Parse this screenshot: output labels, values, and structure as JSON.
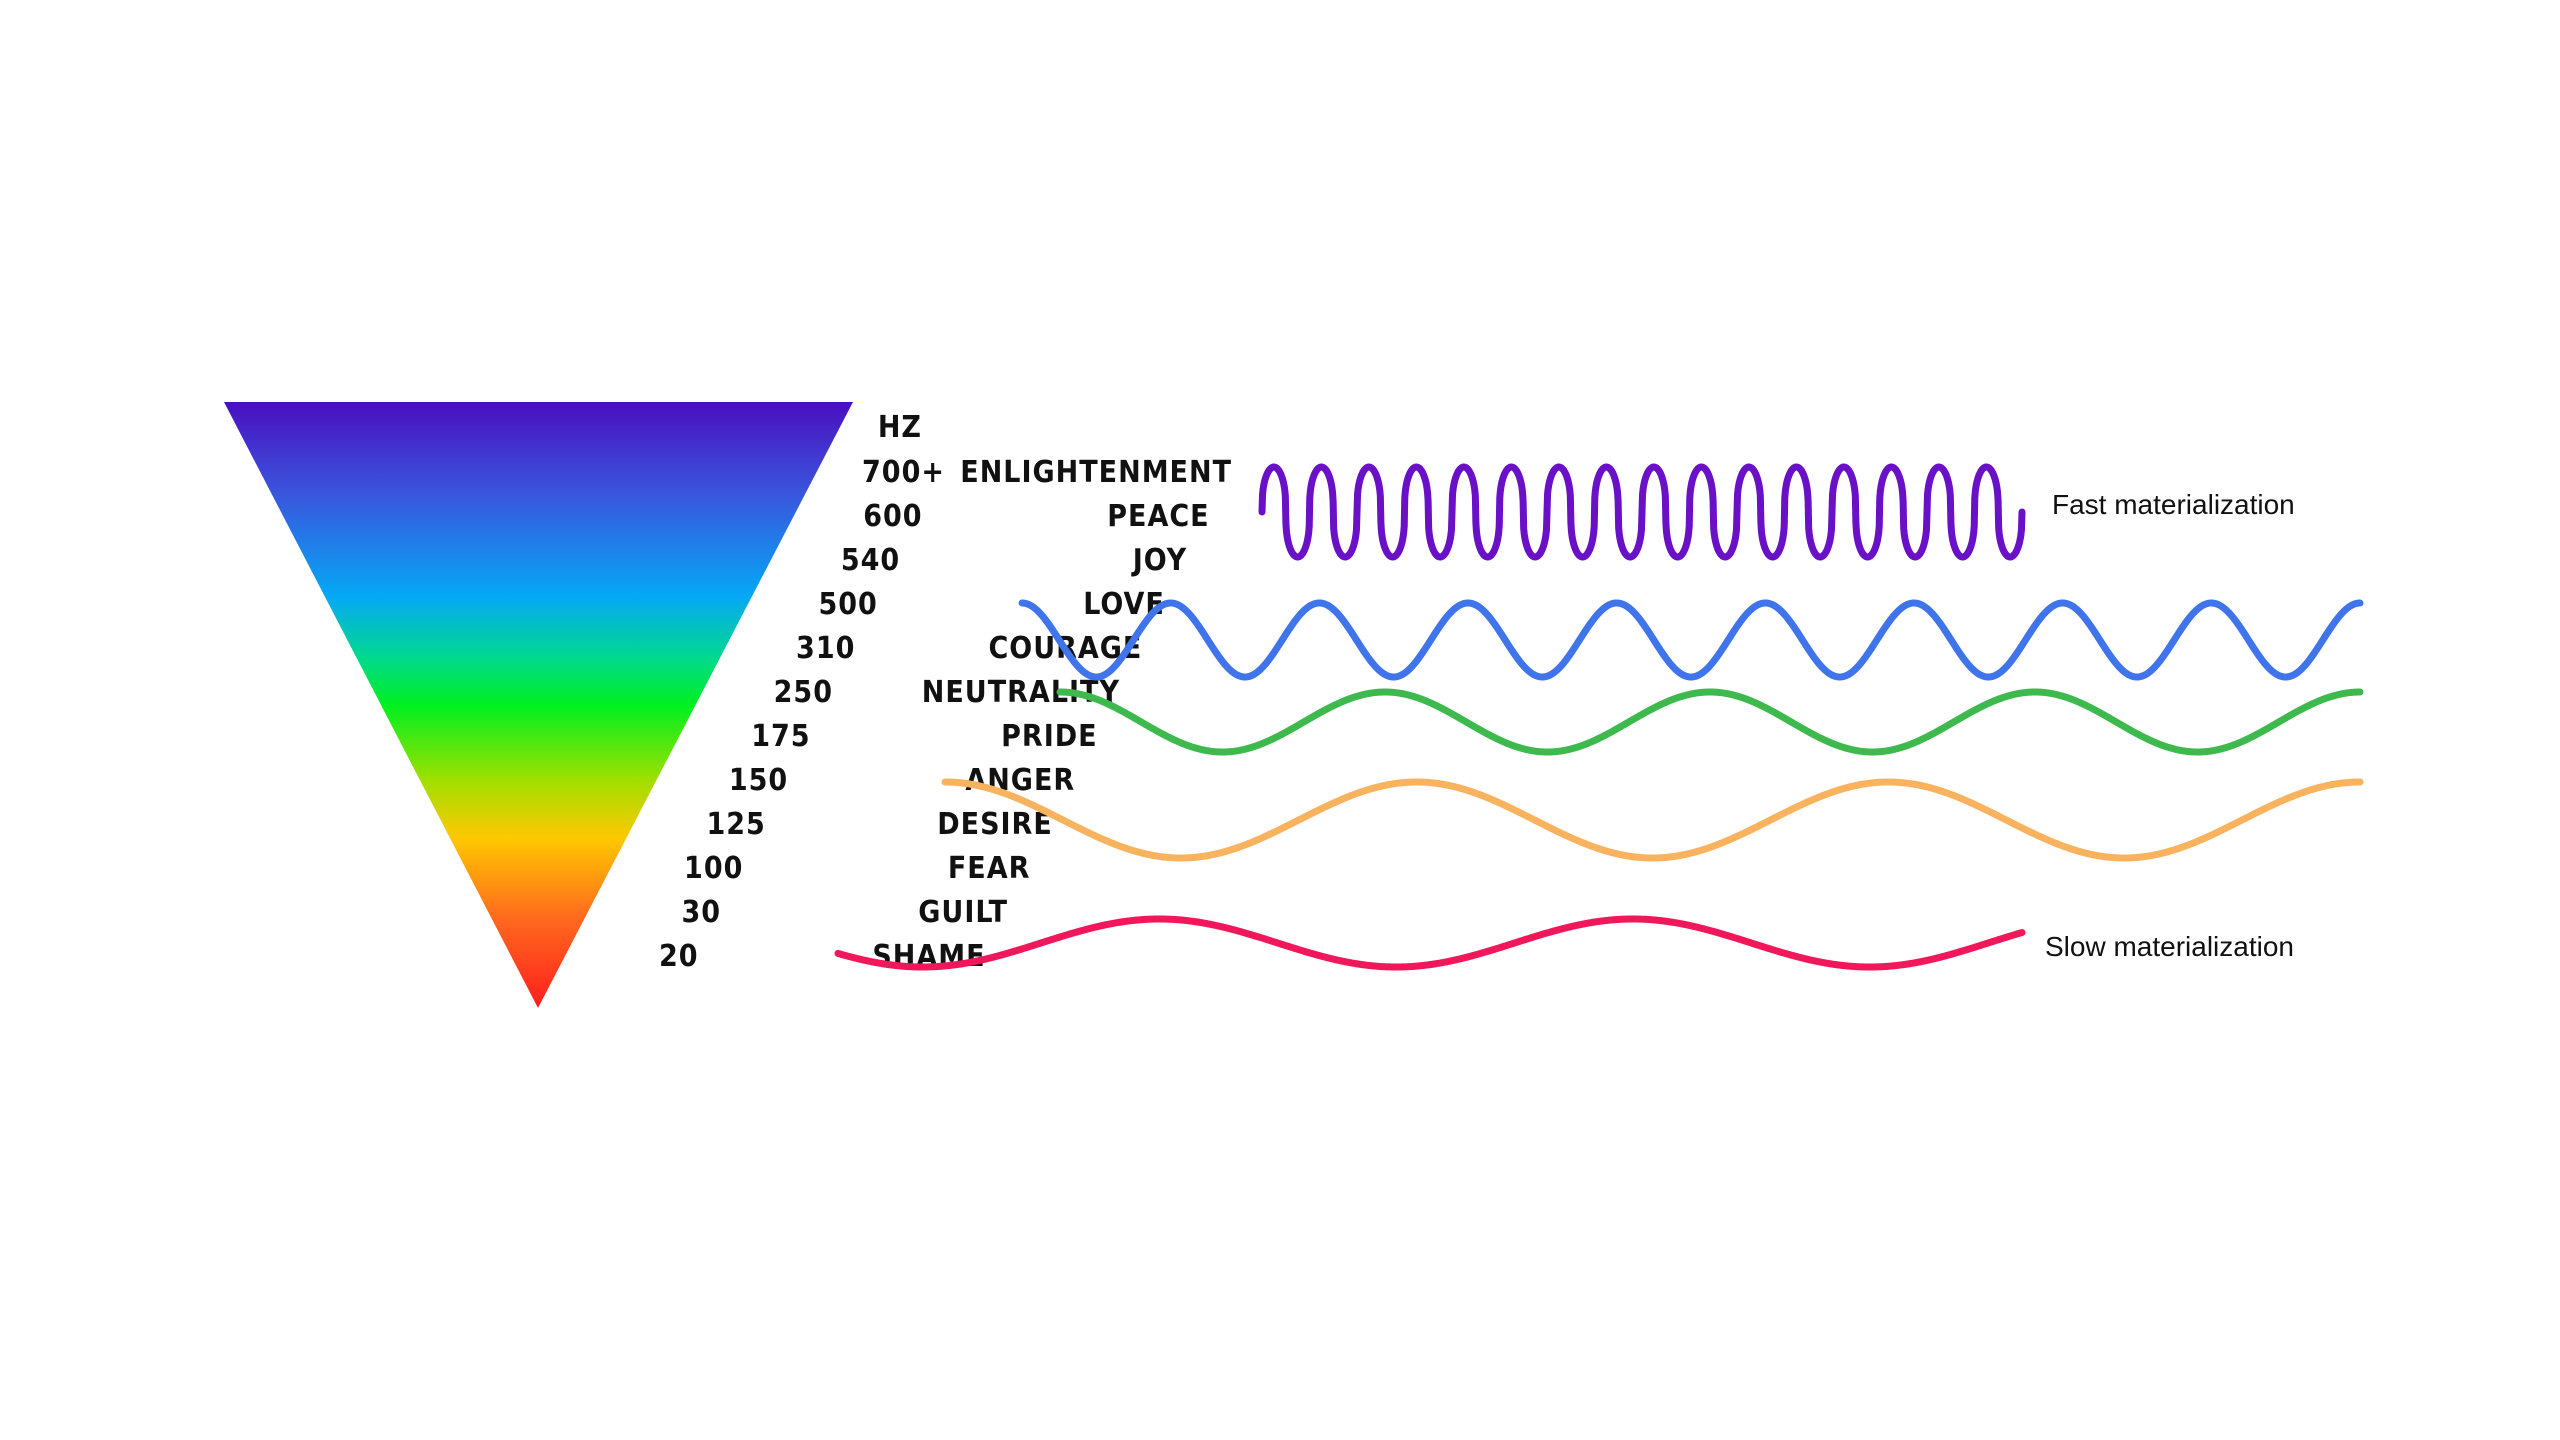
{
  "header": {
    "unit_label": "HZ"
  },
  "levels": [
    {
      "hz": "700+",
      "name": "ENLIGHTENMENT"
    },
    {
      "hz": "600",
      "name": "PEACE"
    },
    {
      "hz": "540",
      "name": "JOY"
    },
    {
      "hz": "500",
      "name": "LOVE"
    },
    {
      "hz": "310",
      "name": "COURAGE"
    },
    {
      "hz": "250",
      "name": "NEUTRALITY"
    },
    {
      "hz": "175",
      "name": "PRIDE"
    },
    {
      "hz": "150",
      "name": "ANGER"
    },
    {
      "hz": "125",
      "name": "DESIRE"
    },
    {
      "hz": "100",
      "name": "FEAR"
    },
    {
      "hz": "30",
      "name": "GUILT"
    },
    {
      "hz": "20",
      "name": "SHAME"
    }
  ],
  "captions": {
    "fast": "Fast materialization",
    "slow": "Slow materialization"
  },
  "colors": {
    "triangle_gradient": [
      "#4a0fc0",
      "#3a55dc",
      "#05a8f5",
      "#00d890",
      "#00f020",
      "#9be000",
      "#ffc800",
      "#ff6a1e",
      "#ff1e1e"
    ],
    "wave_enlightenment": "#6a11c7",
    "wave_love": "#3f74ea",
    "wave_neutrality": "#3db94d",
    "wave_anger": "#f9b35e",
    "wave_shame": "#f0175a"
  },
  "waves": [
    {
      "name": "enlightenment-wave",
      "color_key": "wave_enlightenment",
      "cycles": 16
    },
    {
      "name": "love-wave",
      "color_key": "wave_love",
      "cycles": 9
    },
    {
      "name": "neutrality-wave",
      "color_key": "wave_neutrality",
      "cycles": 4
    },
    {
      "name": "anger-wave",
      "color_key": "wave_anger",
      "cycles": 3
    },
    {
      "name": "shame-wave",
      "color_key": "wave_shame",
      "cycles": 2.5
    }
  ]
}
